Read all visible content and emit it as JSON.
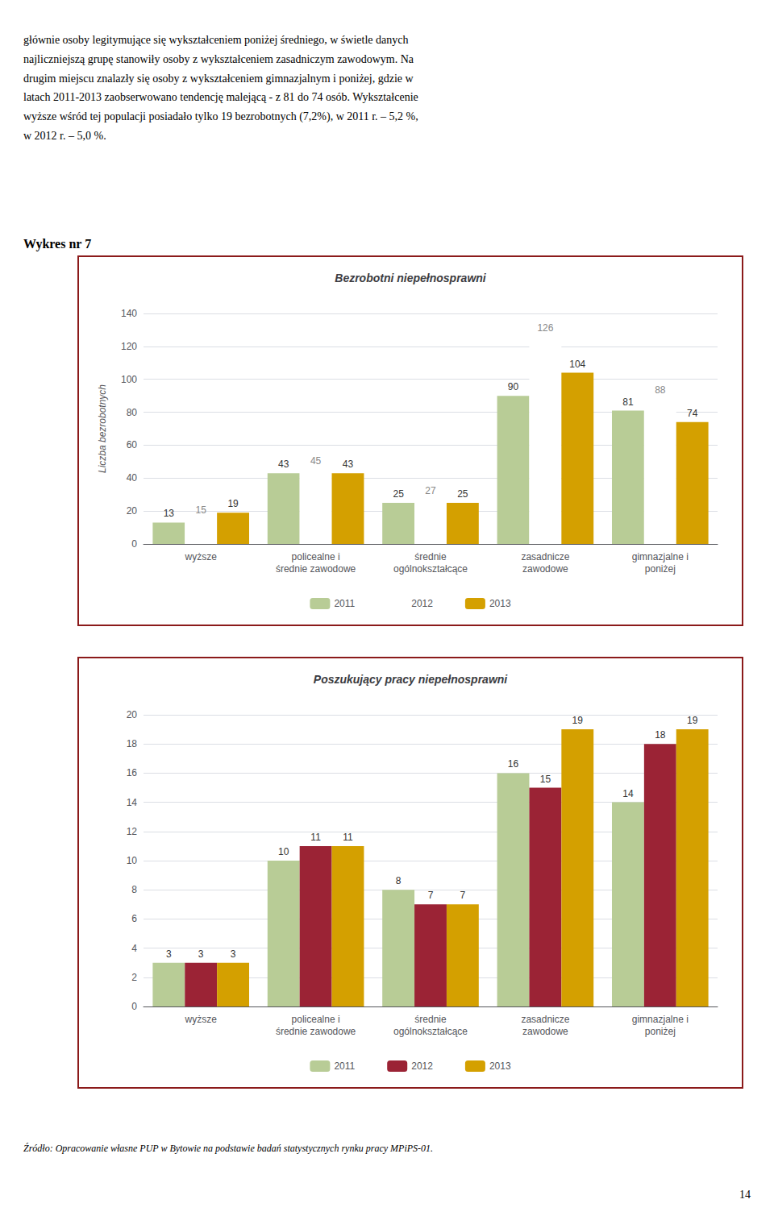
{
  "header_text": "głównie osoby legitymujące się wykształceniem poniżej średniego, w świetle danych\nnajliczniejszą grupę stanowiły osoby z wykształceniem zasadniczym zawodowym. Na\ndrugim miejscu znalazły się osoby z wykształceniem gimnazjalnym i poniżej, gdzie w\nlatach 2011-2013 zaobserwowano tendencję malejącą - z 81 do 74 osób. Wykształcenie\nwyższe wśród tej populacji posiadało tylko 19 bezrobotnych (7,2%), w 2011 r. – 5,2 %,\nw 2012 r. – 5,0 %.",
  "section_label": "Wykres nr 7",
  "footer_text": "Źródło: Opracowanie własne PUP w Bytowie na podstawie badań statystycznych rynku pracy MPiPS-01.",
  "page_number": "14",
  "chart_data": [
    {
      "type": "bar",
      "title": "Bezrobotni niepełnosprawni",
      "ylabel": "Liczba bezrobotnych",
      "categories": [
        "wyższe",
        "policealne i\nśrednie zawodowe",
        "średnie\nogólnokształcące",
        "zasadnicze\nzawodowe",
        "gimnazjalne i\nponiżej"
      ],
      "series": [
        {
          "name": "2011",
          "color": "#b8cc96",
          "values": [
            13,
            43,
            25,
            90,
            81
          ]
        },
        {
          "name": "2012",
          "color": "#ffffff",
          "values": [
            15,
            45,
            27,
            126,
            88
          ]
        },
        {
          "name": "2013",
          "color": "#d4a000",
          "values": [
            19,
            43,
            25,
            104,
            74
          ]
        }
      ],
      "ylim": [
        0,
        140
      ],
      "yticks": [
        0,
        20,
        40,
        60,
        80,
        100,
        120,
        140
      ],
      "grid": true,
      "legend": "bottom",
      "data_labels": true
    },
    {
      "type": "bar",
      "title": "Poszukujący pracy niepełnosprawni",
      "categories": [
        "wyższe",
        "policealne i\nśrednie zawodowe",
        "średnie\nogólnokształcące",
        "zasadnicze\nzawodowe",
        "gimnazjalne i\nponiżej"
      ],
      "series": [
        {
          "name": "2011",
          "color": "#b8cc96",
          "values": [
            3,
            10,
            8,
            16,
            14
          ]
        },
        {
          "name": "2012",
          "color": "#9b2335",
          "values": [
            3,
            11,
            7,
            15,
            18
          ]
        },
        {
          "name": "2013",
          "color": "#d4a000",
          "values": [
            3,
            11,
            7,
            19,
            19
          ]
        }
      ],
      "ylim": [
        0,
        20
      ],
      "yticks": [
        0,
        2,
        4,
        6,
        8,
        10,
        12,
        14,
        16,
        18,
        20
      ],
      "grid": true,
      "legend": "bottom",
      "data_labels": true
    }
  ]
}
